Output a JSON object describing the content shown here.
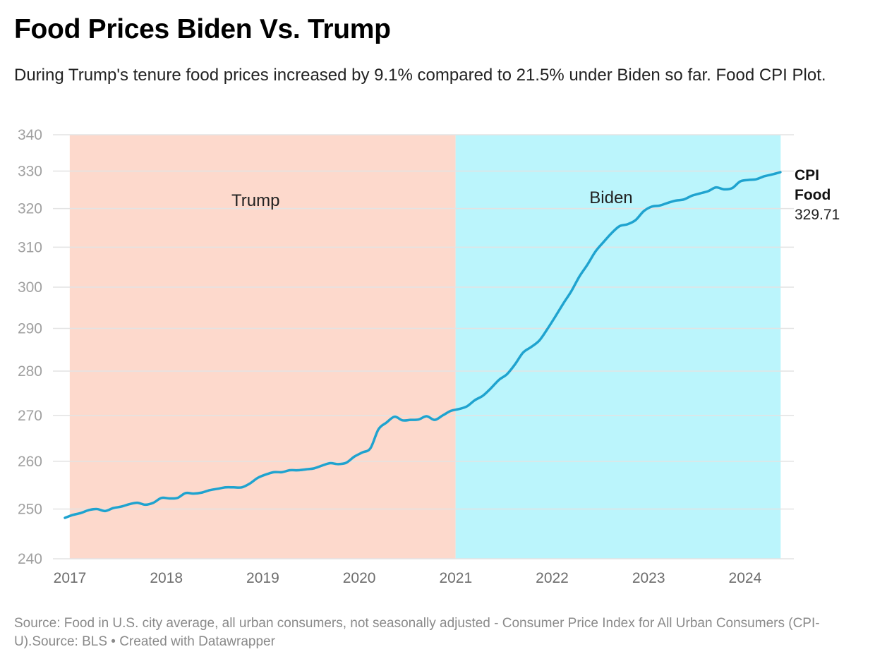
{
  "header": {
    "title": "Food Prices Biden Vs. Trump",
    "subtitle": "During Trump's tenure food prices increased by 9.1% compared to 21.5% under Biden so far. Food CPI Plot."
  },
  "footer": {
    "text": "Source: Food in U.S. city average, all urban consumers, not seasonally adjusted - Consumer Price Index for All Urban Consumers (CPI-U).Source: BLS • Created with Datawrapper"
  },
  "chart_data": {
    "type": "line",
    "title": "Food Prices Biden Vs. Trump",
    "xlabel": "",
    "ylabel": "",
    "y_scale": "log",
    "ylim": [
      240,
      340
    ],
    "xlim": [
      2017.0,
      2024.75
    ],
    "grid": true,
    "y_ticks": [
      "340",
      "330",
      "320",
      "310",
      "300",
      "290",
      "280",
      "270",
      "260",
      "250",
      "240"
    ],
    "y_tick_values": [
      340,
      330,
      320,
      310,
      300,
      290,
      280,
      270,
      260,
      250,
      240
    ],
    "x_ticks": [
      "2017",
      "2018",
      "2019",
      "2020",
      "2021",
      "2022",
      "2023",
      "2024"
    ],
    "x_tick_values": [
      2017,
      2018,
      2019,
      2020,
      2021,
      2022,
      2023,
      2024
    ],
    "bands": [
      {
        "label": "Trump",
        "start": 2017.05,
        "end": 2021.05,
        "color": "#fdd9cc"
      },
      {
        "label": "Biden",
        "start": 2021.05,
        "end": 2024.42,
        "color": "#bbf5fc"
      }
    ],
    "series": [
      {
        "name": "CPI Food",
        "color": "#1fa3cf",
        "end_label": {
          "line1": "CPI",
          "line2": "Food",
          "value": "329.71"
        },
        "x": [
          2017.0,
          2017.083,
          2017.167,
          2017.25,
          2017.333,
          2017.417,
          2017.5,
          2017.583,
          2017.667,
          2017.75,
          2017.833,
          2017.917,
          2018.0,
          2018.083,
          2018.167,
          2018.25,
          2018.333,
          2018.417,
          2018.5,
          2018.583,
          2018.667,
          2018.75,
          2018.833,
          2018.917,
          2019.0,
          2019.083,
          2019.167,
          2019.25,
          2019.333,
          2019.417,
          2019.5,
          2019.583,
          2019.667,
          2019.75,
          2019.833,
          2019.917,
          2020.0,
          2020.083,
          2020.167,
          2020.25,
          2020.333,
          2020.417,
          2020.5,
          2020.583,
          2020.667,
          2020.75,
          2020.833,
          2020.917,
          2021.0,
          2021.083,
          2021.167,
          2021.25,
          2021.333,
          2021.417,
          2021.5,
          2021.583,
          2021.667,
          2021.75,
          2021.833,
          2021.917,
          2022.0,
          2022.083,
          2022.167,
          2022.25,
          2022.333,
          2022.417,
          2022.5,
          2022.583,
          2022.667,
          2022.75,
          2022.833,
          2022.917,
          2023.0,
          2023.083,
          2023.167,
          2023.25,
          2023.333,
          2023.417,
          2023.5,
          2023.583,
          2023.667,
          2023.75,
          2023.833,
          2023.917,
          2024.0,
          2024.083,
          2024.167,
          2024.25,
          2024.333,
          2024.417
        ],
        "values": [
          248.2,
          248.8,
          249.2,
          249.8,
          250.0,
          249.6,
          250.2,
          250.5,
          251.0,
          251.3,
          250.9,
          251.3,
          252.3,
          252.2,
          252.3,
          253.3,
          253.2,
          253.4,
          253.9,
          254.2,
          254.5,
          254.5,
          254.5,
          255.3,
          256.5,
          257.2,
          257.7,
          257.7,
          258.1,
          258.1,
          258.3,
          258.5,
          259.1,
          259.6,
          259.4,
          259.7,
          261.0,
          261.9,
          262.8,
          266.9,
          268.4,
          269.7,
          268.9,
          269.0,
          269.1,
          269.8,
          269.0,
          270.0,
          271.0,
          271.4,
          272.0,
          273.4,
          274.4,
          276.1,
          278.0,
          279.3,
          281.6,
          284.3,
          285.6,
          287.1,
          289.8,
          292.8,
          296.0,
          299.0,
          302.6,
          305.6,
          308.9,
          311.3,
          313.6,
          315.4,
          315.9,
          317.0,
          319.3,
          320.5,
          320.8,
          321.5,
          322.1,
          322.4,
          323.4,
          324.0,
          324.6,
          325.6,
          325.1,
          325.4,
          327.2,
          327.6,
          327.8,
          328.6,
          329.1,
          329.71
        ]
      }
    ]
  }
}
